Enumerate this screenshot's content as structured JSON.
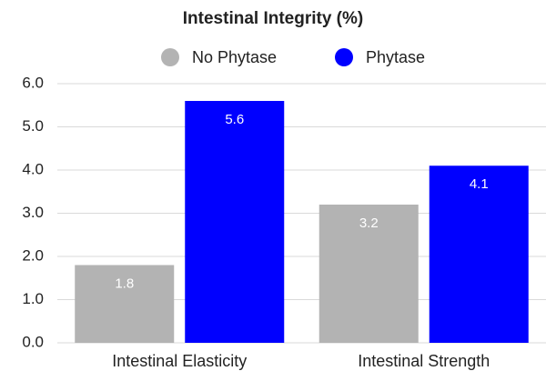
{
  "chart_data": {
    "type": "bar",
    "title": "Intestinal Integrity (%)",
    "categories": [
      "Intestinal Elasticity",
      "Intestinal Strength"
    ],
    "series": [
      {
        "name": "No Phytase",
        "color": "#b3b3b3",
        "values": [
          1.8,
          3.2
        ]
      },
      {
        "name": "Phytase",
        "color": "#0000ff",
        "values": [
          5.6,
          4.1
        ]
      }
    ],
    "ylim": [
      0,
      6
    ],
    "yticks": [
      {
        "value": 0,
        "label": "0.0"
      },
      {
        "value": 1,
        "label": "1.0"
      },
      {
        "value": 2,
        "label": "2.0"
      },
      {
        "value": 3,
        "label": "3.0"
      },
      {
        "value": 4,
        "label": "4.0"
      },
      {
        "value": 5,
        "label": "5.0"
      },
      {
        "value": 6,
        "label": "6.0"
      }
    ],
    "grid": true
  }
}
